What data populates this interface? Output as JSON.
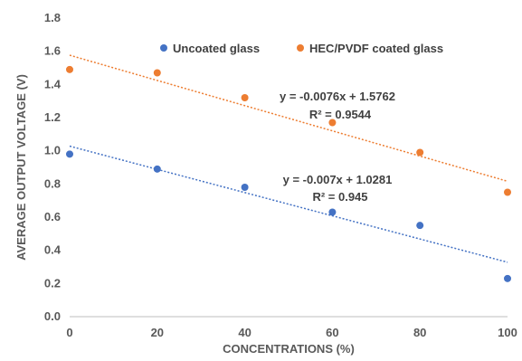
{
  "chart_data": {
    "type": "scatter",
    "title": "",
    "xlabel": "CONCENTRATIONS (%)",
    "ylabel": "AVERAGE OUTPUT VOLTAGE (V)",
    "xlim": [
      0,
      100
    ],
    "ylim": [
      0,
      1.8
    ],
    "x_ticks": [
      0,
      20,
      40,
      60,
      80,
      100
    ],
    "y_ticks": [
      0.0,
      0.2,
      0.4,
      0.6,
      0.8,
      1.0,
      1.2,
      1.4,
      1.6,
      1.8
    ],
    "x_tick_labels": [
      "0",
      "20",
      "40",
      "60",
      "80",
      "100"
    ],
    "y_tick_labels": [
      "0.0",
      "0.2",
      "0.4",
      "0.6",
      "0.8",
      "1.0",
      "1.2",
      "1.4",
      "1.6",
      "1.8"
    ],
    "grid": false,
    "legend_position": "top",
    "series": [
      {
        "name": "Uncoated glass",
        "color": "#4472C4",
        "x": [
          0,
          20,
          40,
          60,
          80,
          100
        ],
        "y": [
          0.98,
          0.89,
          0.78,
          0.63,
          0.55,
          0.23
        ],
        "trendline": {
          "slope": -0.007,
          "intercept": 1.0281,
          "equation": "y = -0.007x + 1.0281",
          "r2": "R² = 0.945"
        }
      },
      {
        "name": "HEC/PVDF coated glass",
        "color": "#ED7D31",
        "x": [
          0,
          20,
          40,
          60,
          80,
          100
        ],
        "y": [
          1.49,
          1.47,
          1.32,
          1.17,
          0.99,
          0.75
        ],
        "trendline": {
          "slope": -0.0076,
          "intercept": 1.5762,
          "equation": "y = -0.0076x + 1.5762",
          "r2": "R² = 0.9544"
        }
      }
    ]
  }
}
